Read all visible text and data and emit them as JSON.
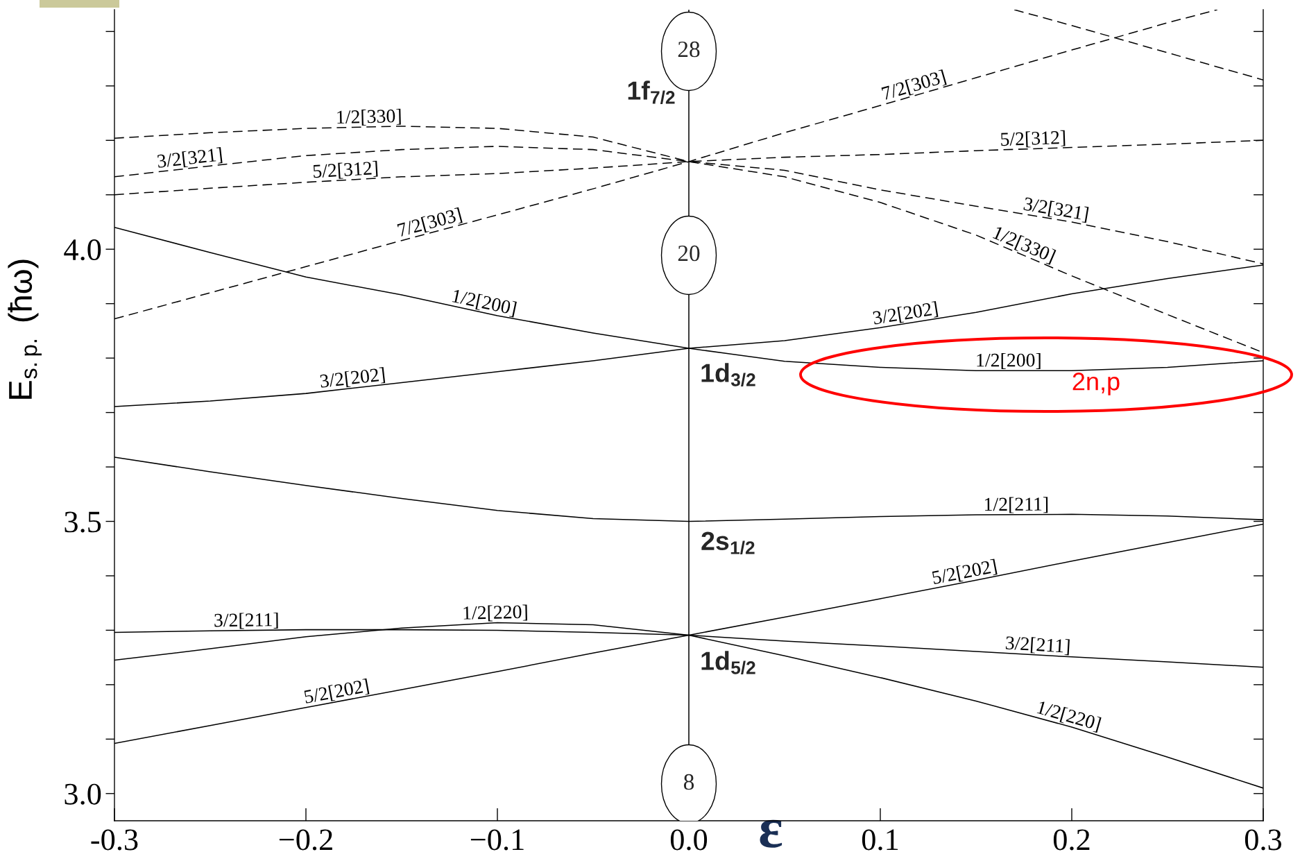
{
  "chart_data": {
    "type": "line",
    "xlabel": "ε",
    "ylabel": "E$_{s.p.}$ (ħω)",
    "xlim": [
      -0.3,
      0.3
    ],
    "ylim": [
      2.95,
      4.44
    ],
    "xticks": [
      {
        "value": -0.3,
        "label": "-0.3"
      },
      {
        "value": -0.2,
        "label": "−0.2"
      },
      {
        "value": -0.1,
        "label": "−0.1"
      },
      {
        "value": 0,
        "label": "0.0"
      },
      {
        "value": 0.1,
        "label": "0.1"
      },
      {
        "value": 0.2,
        "label": "0.2"
      },
      {
        "value": 0.3,
        "label": "0.3"
      }
    ],
    "yticks": [
      {
        "value": 3.0,
        "label": "3.0"
      },
      {
        "value": 3.1,
        "label": null
      },
      {
        "value": 3.2,
        "label": null
      },
      {
        "value": 3.3,
        "label": null
      },
      {
        "value": 3.4,
        "label": null
      },
      {
        "value": 3.5,
        "label": "3.5"
      },
      {
        "value": 3.6,
        "label": null
      },
      {
        "value": 3.7,
        "label": null
      },
      {
        "value": 3.8,
        "label": null
      },
      {
        "value": 3.9,
        "label": null
      },
      {
        "value": 4.0,
        "label": "4.0"
      },
      {
        "value": 4.1,
        "label": null
      },
      {
        "value": 4.2,
        "label": null
      },
      {
        "value": 4.3,
        "label": null
      },
      {
        "value": 4.4,
        "label": null
      }
    ],
    "line_style": "solid",
    "x": [
      -0.3,
      -0.25,
      -0.2,
      -0.15,
      -0.1,
      -0.05,
      0,
      0.05,
      0.1,
      0.15,
      0.2,
      0.25,
      0.3
    ],
    "series": [
      {
        "name": "1/2[330]",
        "color": "#000000",
        "line_style": "dashed",
        "values": [
          4.204,
          4.214,
          4.222,
          4.226,
          4.222,
          4.206,
          4.161,
          4.133,
          4.086,
          4.026,
          3.951,
          3.88,
          3.81
        ]
      },
      {
        "name": "3/2[321]",
        "color": "#000000",
        "line_style": "dashed",
        "values": [
          4.133,
          4.153,
          4.172,
          4.183,
          4.189,
          4.183,
          4.161,
          4.145,
          4.109,
          4.079,
          4.05,
          4.014,
          3.973
        ]
      },
      {
        "name": "5/2[312]",
        "color": "#000000",
        "line_style": "dashed",
        "values": [
          4.1,
          4.112,
          4.123,
          4.133,
          4.139,
          4.149,
          4.161,
          4.169,
          4.174,
          4.181,
          4.187,
          4.193,
          4.2
        ]
      },
      {
        "name": "7/2[303]",
        "color": "#000000",
        "line_style": "dashed",
        "x": [
          -0.3,
          -0.25,
          -0.2,
          -0.15,
          -0.1,
          -0.05,
          0,
          0.05,
          0.1,
          0.15,
          0.2,
          0.25,
          0.276
        ],
        "values": [
          3.872,
          3.92,
          3.968,
          4.016,
          4.063,
          4.111,
          4.161,
          4.214,
          4.264,
          4.315,
          4.366,
          4.416,
          4.44
        ]
      },
      {
        "color": "#000000",
        "line_style": "dashed",
        "x": [
          0.17,
          0.2,
          0.25,
          0.3
        ],
        "values": [
          4.44,
          4.411,
          4.361,
          4.311
        ]
      },
      {
        "name": "1/2[200]",
        "color": "#000000",
        "values": [
          4.04,
          3.994,
          3.949,
          3.916,
          3.878,
          3.846,
          3.818,
          3.794,
          3.783,
          3.777,
          3.777,
          3.783,
          3.795
        ]
      },
      {
        "name": "3/2[202]",
        "color": "#000000",
        "values": [
          3.711,
          3.721,
          3.735,
          3.755,
          3.775,
          3.795,
          3.818,
          3.832,
          3.856,
          3.884,
          3.918,
          3.946,
          3.971
        ]
      },
      {
        "name": "1/2[211]",
        "color": "#000000",
        "values": [
          3.618,
          3.591,
          3.566,
          3.542,
          3.52,
          3.505,
          3.5,
          3.504,
          3.509,
          3.512,
          3.513,
          3.51,
          3.503
        ]
      },
      {
        "name": "3/2[211]",
        "color": "#000000",
        "values": [
          3.296,
          3.299,
          3.301,
          3.301,
          3.3,
          3.296,
          3.291,
          3.28,
          3.271,
          3.261,
          3.251,
          3.242,
          3.232
        ]
      },
      {
        "name": "1/2[220]",
        "color": "#000000",
        "values": [
          3.245,
          3.266,
          3.288,
          3.304,
          3.314,
          3.31,
          3.291,
          3.253,
          3.213,
          3.17,
          3.122,
          3.067,
          3.01
        ]
      },
      {
        "name": "5/2[202]",
        "color": "#000000",
        "values": [
          3.092,
          3.125,
          3.158,
          3.191,
          3.224,
          3.258,
          3.291,
          3.324,
          3.358,
          3.392,
          3.427,
          3.461,
          3.495
        ]
      }
    ],
    "ref_lines": [
      {
        "axis": "x",
        "value": 0,
        "color": "#000000"
      }
    ],
    "annotations": [
      "28",
      "20",
      "8",
      "1f$_{7/2}$",
      "1d$_{3/2}$",
      "2s$_{1/2}$",
      "1d$_{5/2}$",
      "2n,p"
    ]
  }
}
